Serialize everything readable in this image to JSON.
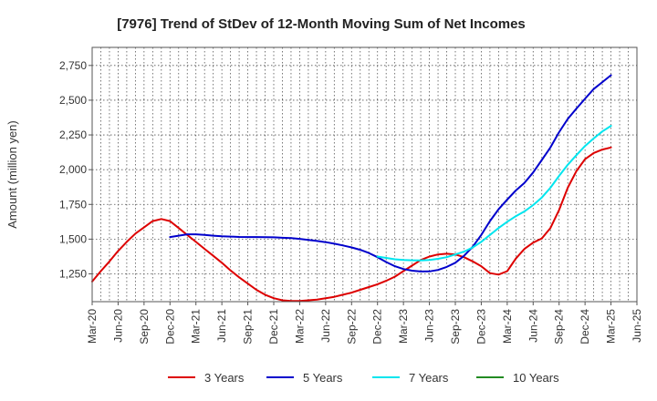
{
  "chart_data": {
    "type": "line",
    "title": "[7976]  Trend of StDev of 12-Month Moving Sum of Net Incomes",
    "ylabel": "Amount (million yen)",
    "xlabel": "",
    "ylim": [
      1050,
      2880
    ],
    "yticks": [
      1250,
      1500,
      1750,
      2000,
      2250,
      2500,
      2750
    ],
    "ytick_labels": [
      "1,250",
      "1,500",
      "1,750",
      "2,000",
      "2,250",
      "2,500",
      "2,750"
    ],
    "xlim": [
      "2020-03",
      "2025-06"
    ],
    "xtick_labels": [
      "Mar-20",
      "Jun-20",
      "Sep-20",
      "Dec-20",
      "Mar-21",
      "Jun-21",
      "Sep-21",
      "Dec-21",
      "Mar-22",
      "Jun-22",
      "Sep-22",
      "Dec-22",
      "Mar-23",
      "Jun-23",
      "Sep-23",
      "Dec-23",
      "Mar-24",
      "Jun-24",
      "Sep-24",
      "Dec-24",
      "Mar-25",
      "Jun-25"
    ],
    "grid": true,
    "legend_position": "bottom",
    "series": [
      {
        "name": "3 Years",
        "color": "#dd0000",
        "x": [
          "2020-03",
          "2020-04",
          "2020-05",
          "2020-06",
          "2020-07",
          "2020-08",
          "2020-09",
          "2020-10",
          "2020-11",
          "2020-12",
          "2021-01",
          "2021-02",
          "2021-03",
          "2021-04",
          "2021-05",
          "2021-06",
          "2021-07",
          "2021-08",
          "2021-09",
          "2021-10",
          "2021-11",
          "2021-12",
          "2022-01",
          "2022-02",
          "2022-03",
          "2022-04",
          "2022-05",
          "2022-06",
          "2022-07",
          "2022-08",
          "2022-09",
          "2022-10",
          "2022-11",
          "2022-12",
          "2023-01",
          "2023-02",
          "2023-03",
          "2023-04",
          "2023-05",
          "2023-06",
          "2023-07",
          "2023-08",
          "2023-09",
          "2023-10",
          "2023-11",
          "2023-12",
          "2024-01",
          "2024-02",
          "2024-03",
          "2024-04",
          "2024-05",
          "2024-06",
          "2024-07",
          "2024-08",
          "2024-09",
          "2024-10",
          "2024-11",
          "2024-12",
          "2025-01",
          "2025-02",
          "2025-03"
        ],
        "y": [
          1195,
          1270,
          1340,
          1415,
          1480,
          1540,
          1585,
          1630,
          1645,
          1630,
          1580,
          1530,
          1480,
          1430,
          1380,
          1330,
          1275,
          1225,
          1180,
          1135,
          1100,
          1075,
          1060,
          1055,
          1055,
          1060,
          1065,
          1075,
          1085,
          1100,
          1115,
          1135,
          1155,
          1175,
          1200,
          1230,
          1270,
          1310,
          1350,
          1375,
          1390,
          1395,
          1390,
          1370,
          1340,
          1305,
          1255,
          1245,
          1270,
          1360,
          1430,
          1475,
          1505,
          1580,
          1710,
          1870,
          1990,
          2075,
          2120,
          2145,
          2160
        ]
      },
      {
        "name": "5 Years",
        "color": "#0000cc",
        "x": [
          "2020-12",
          "2021-01",
          "2021-02",
          "2021-03",
          "2021-04",
          "2021-05",
          "2021-06",
          "2021-07",
          "2021-08",
          "2021-09",
          "2021-10",
          "2021-11",
          "2021-12",
          "2022-01",
          "2022-02",
          "2022-03",
          "2022-04",
          "2022-05",
          "2022-06",
          "2022-07",
          "2022-08",
          "2022-09",
          "2022-10",
          "2022-11",
          "2022-12",
          "2023-01",
          "2023-02",
          "2023-03",
          "2023-04",
          "2023-05",
          "2023-06",
          "2023-07",
          "2023-08",
          "2023-09",
          "2023-10",
          "2023-11",
          "2023-12",
          "2024-01",
          "2024-02",
          "2024-03",
          "2024-04",
          "2024-05",
          "2024-06",
          "2024-07",
          "2024-08",
          "2024-09",
          "2024-10",
          "2024-11",
          "2024-12",
          "2025-01",
          "2025-02",
          "2025-03"
        ],
        "y": [
          1515,
          1525,
          1535,
          1535,
          1530,
          1525,
          1520,
          1518,
          1516,
          1515,
          1515,
          1514,
          1513,
          1510,
          1507,
          1502,
          1495,
          1487,
          1478,
          1467,
          1455,
          1440,
          1423,
          1400,
          1370,
          1335,
          1305,
          1285,
          1273,
          1267,
          1268,
          1278,
          1300,
          1330,
          1380,
          1445,
          1530,
          1630,
          1715,
          1785,
          1850,
          1905,
          1980,
          2070,
          2160,
          2270,
          2365,
          2440,
          2510,
          2580,
          2630,
          2680
        ]
      },
      {
        "name": "7 Years",
        "color": "#00e5ee",
        "x": [
          "2022-12",
          "2023-01",
          "2023-02",
          "2023-03",
          "2023-04",
          "2023-05",
          "2023-06",
          "2023-07",
          "2023-08",
          "2023-09",
          "2023-10",
          "2023-11",
          "2023-12",
          "2024-01",
          "2024-02",
          "2024-03",
          "2024-04",
          "2024-05",
          "2024-06",
          "2024-07",
          "2024-08",
          "2024-09",
          "2024-10",
          "2024-11",
          "2024-12",
          "2025-01",
          "2025-02",
          "2025-03"
        ],
        "y": [
          1375,
          1365,
          1355,
          1350,
          1348,
          1347,
          1350,
          1358,
          1370,
          1390,
          1410,
          1440,
          1480,
          1530,
          1580,
          1625,
          1665,
          1700,
          1745,
          1800,
          1870,
          1955,
          2035,
          2105,
          2170,
          2225,
          2275,
          2315
        ]
      },
      {
        "name": "10 Years",
        "color": "#228b22",
        "x": [],
        "y": []
      }
    ]
  }
}
